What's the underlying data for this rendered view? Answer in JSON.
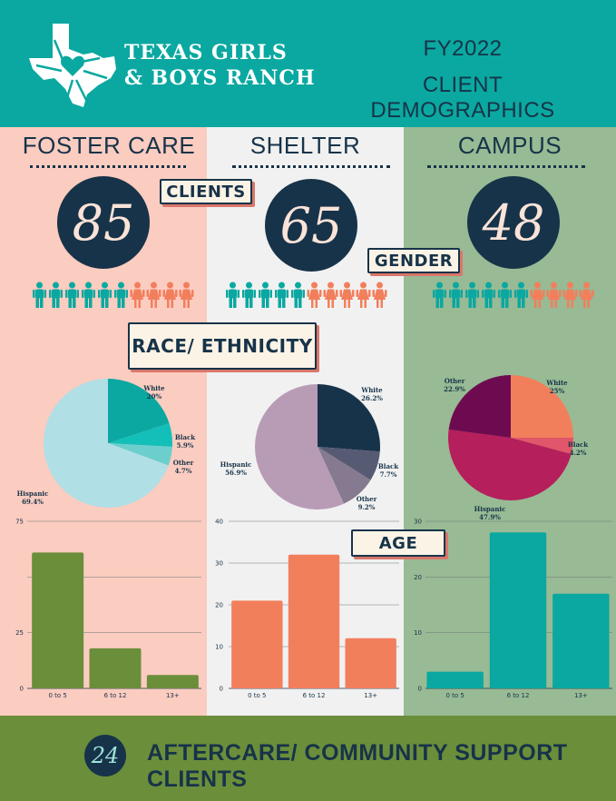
{
  "header": {
    "brand_line1": "TEXAS GIRLS",
    "brand_line2": "& BOYS RANCH",
    "fy_line1": "FY2022",
    "fy_line2": "CLIENT DEMOGRAPHICS",
    "logo": "texas-heart-logo"
  },
  "colors": {
    "header_bg": "#0aa8a0",
    "foster_bg": "#fbccc0",
    "shelter_bg": "#f1f1f1",
    "campus_bg": "#98ba94",
    "navy": "#173349",
    "teal_person": "#0aa8a0",
    "orange_person": "#f27f5c",
    "footer_bg": "#6b8e3b"
  },
  "tags": {
    "clients": "CLIENTS",
    "gender": "GENDER",
    "race": "RACE/ ETHNICITY",
    "age": "AGE"
  },
  "columns": [
    {
      "title": "FOSTER CARE",
      "clients": "85",
      "gender_icons": {
        "male": 6,
        "female": 4
      }
    },
    {
      "title": "SHELTER",
      "clients": "65",
      "gender_icons": {
        "male": 5,
        "female": 5
      }
    },
    {
      "title": "CAMPUS",
      "clients": "48",
      "gender_icons": {
        "male": 6,
        "female": 4
      }
    }
  ],
  "footer": {
    "count": "24",
    "label": "AFTERCARE/ COMMUNITY SUPPORT CLIENTS"
  },
  "chart_data": [
    {
      "type": "pie",
      "title": "",
      "slices": [
        {
          "name": "White",
          "pct": "20%",
          "value": 20,
          "color": "#0aa8a0"
        },
        {
          "name": "Black",
          "pct": "5.9%",
          "value": 5.9,
          "color": "#13bfb9"
        },
        {
          "name": "Other",
          "pct": "4.7%",
          "value": 4.7,
          "color": "#6ccfcd"
        },
        {
          "name": "Hispanic",
          "pct": "69.4%",
          "value": 69.4,
          "color": "#b0dfe6"
        }
      ]
    },
    {
      "type": "pie",
      "title": "",
      "slices": [
        {
          "name": "White",
          "pct": "26.2%",
          "value": 26.2,
          "color": "#173349"
        },
        {
          "name": "Black",
          "pct": "7.7%",
          "value": 7.7,
          "color": "#565a72"
        },
        {
          "name": "Other",
          "pct": "9.2%",
          "value": 9.2,
          "color": "#857a90"
        },
        {
          "name": "Hispanic",
          "pct": "56.9%",
          "value": 56.9,
          "color": "#b89cb6"
        }
      ]
    },
    {
      "type": "pie",
      "title": "",
      "slices": [
        {
          "name": "White",
          "pct": "25%",
          "value": 25,
          "color": "#f27f5c"
        },
        {
          "name": "Black",
          "pct": "4.2%",
          "value": 4.2,
          "color": "#e1566a"
        },
        {
          "name": "Hispanic",
          "pct": "47.9%",
          "value": 47.9,
          "color": "#b51f5c"
        },
        {
          "name": "Other",
          "pct": "22.9%",
          "value": 22.9,
          "color": "#6e0b50"
        }
      ]
    },
    {
      "type": "bar",
      "title": "",
      "categories": [
        "0 to 5",
        "6 to 12",
        "13+"
      ],
      "values": [
        61,
        18,
        6
      ],
      "ylim": [
        0,
        75
      ],
      "yticks": [
        "0",
        "25",
        "50",
        "75"
      ],
      "ytick_values": [
        0,
        25,
        50,
        75
      ],
      "yticks_shown": [
        "0",
        "25",
        "",
        "75"
      ],
      "color": "#6b8e3b",
      "grid": true
    },
    {
      "type": "bar",
      "title": "",
      "categories": [
        "0 to 5",
        "6 to 12",
        "13+"
      ],
      "values": [
        21,
        32,
        12
      ],
      "ylim": [
        0,
        40
      ],
      "yticks": [
        "0",
        "10",
        "20",
        "30",
        "40"
      ],
      "ytick_values": [
        0,
        10,
        20,
        30,
        40
      ],
      "yticks_shown": [
        "0",
        "10",
        "20",
        "30",
        "40"
      ],
      "color": "#f27f5c",
      "grid": true
    },
    {
      "type": "bar",
      "title": "",
      "categories": [
        "0 to 5",
        "6 to 12",
        "13+"
      ],
      "values": [
        3,
        28,
        17
      ],
      "ylim": [
        0,
        30
      ],
      "yticks": [
        "0",
        "10",
        "20",
        "30"
      ],
      "ytick_values": [
        0,
        10,
        20,
        30
      ],
      "yticks_shown": [
        "0",
        "10",
        "20",
        "30"
      ],
      "color": "#0aa8a0",
      "grid": true
    }
  ]
}
